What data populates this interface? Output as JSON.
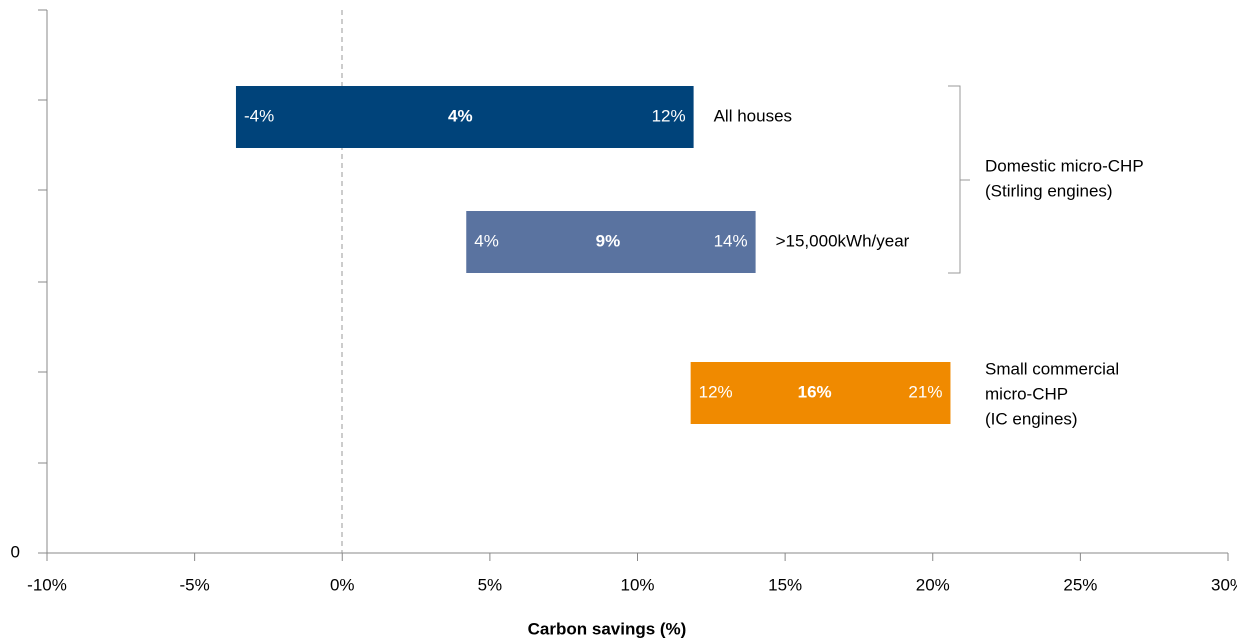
{
  "chart_data": {
    "type": "floating-bar",
    "x_label": "Carbon savings (%)",
    "xlim": [
      -10,
      30
    ],
    "xticks": [
      {
        "value": -10,
        "label": "-10%"
      },
      {
        "value": -5,
        "label": "-5%"
      },
      {
        "value": 0,
        "label": "0%"
      },
      {
        "value": 5,
        "label": "5%"
      },
      {
        "value": 10,
        "label": "10%"
      },
      {
        "value": 15,
        "label": "15%"
      },
      {
        "value": 20,
        "label": "20%"
      },
      {
        "value": 25,
        "label": "25%"
      },
      {
        "value": 30,
        "label": "30%"
      }
    ],
    "ylim": [
      0,
      6
    ],
    "yticks": [
      0
    ],
    "categories": [
      "All houses",
      ">15,000kWh/year",
      null
    ],
    "bars": [
      {
        "low": -3.6,
        "central": 4,
        "high": 11.9,
        "color": "#00437a",
        "value_labels": [
          "-4%",
          "4%",
          "12%"
        ]
      },
      {
        "low": 4.2,
        "central": 9,
        "high": 14.0,
        "color": "#5a73a0",
        "value_labels": [
          "4%",
          "9%",
          "14%"
        ]
      },
      {
        "low": 11.8,
        "central": 16,
        "high": 20.6,
        "color": "#f08a00",
        "value_labels": [
          "12%",
          "16%",
          "21%"
        ]
      }
    ],
    "groups": [
      {
        "label": [
          "Domestic micro-CHP",
          "(Stirling engines)"
        ]
      },
      {
        "label": [
          "Small commercial",
          "micro-CHP",
          "(IC engines)"
        ]
      }
    ]
  }
}
